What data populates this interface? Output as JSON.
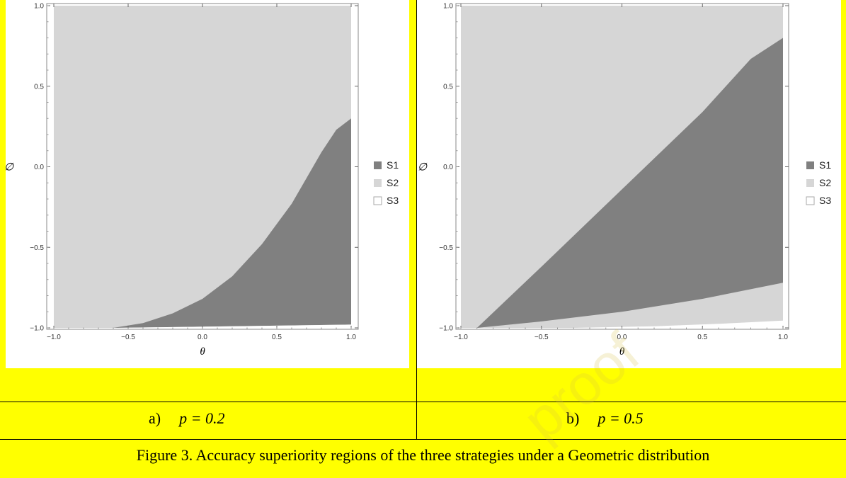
{
  "figure": {
    "caption": "Figure 3. Accuracy superiority regions of the three strategies under a Geometric distribution",
    "watermark": "proof"
  },
  "panels": [
    {
      "label_prefix": "a)",
      "label_math": "p = 0.2"
    },
    {
      "label_prefix": "b)",
      "label_math": "p = 0.5"
    }
  ],
  "colors": {
    "S1": "#808080",
    "S2": "#d6d6d6",
    "S3": "#ffffff",
    "highlight": "#ffff00"
  },
  "chart_data": [
    {
      "type": "area",
      "title": "",
      "xlabel": "θ",
      "ylabel": "∅",
      "xlim": [
        -1.0,
        1.0
      ],
      "ylim": [
        -1.0,
        1.0
      ],
      "x_ticks": [
        "−1.0",
        "−0.5",
        "0.0",
        "0.5",
        "1.0"
      ],
      "y_ticks": [
        "1.0",
        "0.5",
        "0.0",
        "−0.5",
        "−1.0"
      ],
      "legend": [
        "S1",
        "S2",
        "S3"
      ],
      "legend_position": "right",
      "grid": false,
      "regions": [
        {
          "name": "S2",
          "description": "background region",
          "boundary": []
        },
        {
          "name": "S1",
          "boundary": [
            [
              -0.6,
              -1.0
            ],
            [
              -0.4,
              -0.97
            ],
            [
              -0.2,
              -0.91
            ],
            [
              0.0,
              -0.82
            ],
            [
              0.2,
              -0.68
            ],
            [
              0.4,
              -0.48
            ],
            [
              0.6,
              -0.23
            ],
            [
              0.8,
              0.09
            ],
            [
              0.9,
              0.23
            ],
            [
              1.0,
              0.3
            ],
            [
              1.0,
              -0.98
            ],
            [
              -0.6,
              -1.0
            ]
          ]
        },
        {
          "name": "S3",
          "boundary": [
            [
              -0.6,
              -1.0
            ],
            [
              1.0,
              -0.98
            ],
            [
              1.0,
              -1.0
            ]
          ]
        }
      ]
    },
    {
      "type": "area",
      "title": "",
      "xlabel": "θ",
      "ylabel": "∅",
      "xlim": [
        -1.0,
        1.0
      ],
      "ylim": [
        -1.0,
        1.0
      ],
      "x_ticks": [
        "−1.0",
        "−0.5",
        "0.0",
        "0.5",
        "1.0"
      ],
      "y_ticks": [
        "1.0",
        "0.5",
        "0.0",
        "−0.5",
        "−1.0"
      ],
      "legend": [
        "S1",
        "S2",
        "S3"
      ],
      "legend_position": "right",
      "grid": false,
      "regions": [
        {
          "name": "S2",
          "description": "background region",
          "boundary": []
        },
        {
          "name": "S1",
          "boundary": [
            [
              -0.9,
              -1.0
            ],
            [
              -0.5,
              -0.62
            ],
            [
              0.0,
              -0.14
            ],
            [
              0.5,
              0.34
            ],
            [
              0.8,
              0.67
            ],
            [
              1.0,
              0.8
            ],
            [
              1.0,
              -0.72
            ],
            [
              0.5,
              -0.82
            ],
            [
              0.0,
              -0.9
            ],
            [
              -0.5,
              -0.96
            ],
            [
              -0.9,
              -1.0
            ]
          ]
        },
        {
          "name": "S3",
          "boundary": [
            [
              -0.3,
              -1.0
            ],
            [
              0.2,
              -0.99
            ],
            [
              0.6,
              -0.975
            ],
            [
              1.0,
              -0.955
            ],
            [
              1.0,
              -1.0
            ]
          ]
        }
      ]
    }
  ]
}
